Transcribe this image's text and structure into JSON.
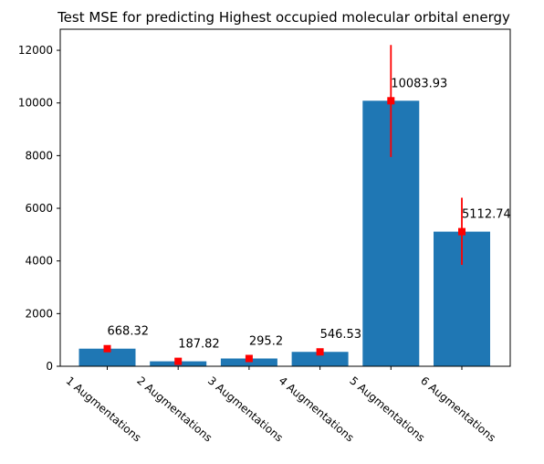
{
  "chart_data": {
    "type": "bar",
    "title": "Test MSE for predicting Highest occupied molecular orbital energy",
    "xlabel": "",
    "ylabel": "",
    "categories": [
      "1 Augmentations",
      "2 Augmentations",
      "3 Augmentations",
      "4 Augmentations",
      "5 Augmentations",
      "6 Augmentations"
    ],
    "values": [
      668.32,
      187.82,
      295.2,
      546.53,
      10083.93,
      5112.74
    ],
    "value_labels": [
      "668.32",
      "187.82",
      "295.2",
      "546.53",
      "10083.93",
      "5112.74"
    ],
    "error_low": [
      668.32,
      187.82,
      295.2,
      546.53,
      7950,
      3850
    ],
    "error_high": [
      668.32,
      187.82,
      295.2,
      546.53,
      12200,
      6400
    ],
    "ylim": [
      0,
      12800
    ],
    "yticks": [
      0,
      2000,
      4000,
      6000,
      8000,
      10000,
      12000
    ],
    "ytick_labels": [
      "0",
      "2000",
      "4000",
      "6000",
      "8000",
      "10000",
      "12000"
    ],
    "grid": false,
    "colors": {
      "bar": "#1f77b4",
      "marker": "#ff0000",
      "errorbar": "#ff0000",
      "axis": "#000000"
    }
  }
}
